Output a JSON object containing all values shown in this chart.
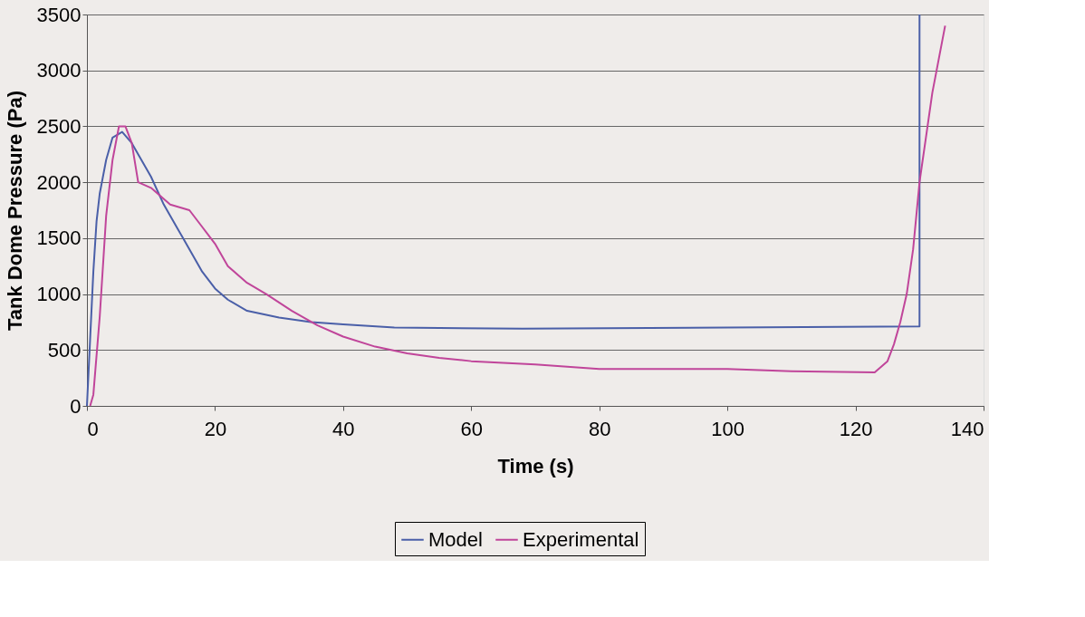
{
  "chart_data": {
    "type": "line",
    "xlabel": "Time (s)",
    "ylabel": "Tank Dome Pressure (Pa)",
    "xlim": [
      0,
      140
    ],
    "xticks": [
      0,
      20,
      40,
      60,
      80,
      100,
      120,
      140
    ],
    "ylim": [
      0,
      3500
    ],
    "yticks": [
      0,
      500,
      1000,
      1500,
      2000,
      2500,
      3000,
      3500
    ],
    "grid": "y",
    "legend": "bottom",
    "marker": "none",
    "line_style": "solid",
    "series": [
      {
        "name": "Model",
        "color": "#4a5fa8",
        "x": [
          0,
          0.5,
          1,
          1.5,
          2,
          3,
          4,
          5.5,
          7,
          10,
          12,
          15,
          18,
          20,
          22,
          25,
          30,
          35,
          40,
          48,
          68,
          100,
          130,
          130
        ],
        "values": [
          0,
          600,
          1200,
          1650,
          1900,
          2200,
          2400,
          2450,
          2350,
          2050,
          1800,
          1500,
          1200,
          1050,
          950,
          850,
          790,
          750,
          730,
          700,
          690,
          700,
          710,
          3500
        ]
      },
      {
        "name": "Experimental",
        "color": "#c0459a",
        "x": [
          0.5,
          1,
          2,
          3,
          4,
          5,
          6,
          7,
          8,
          10,
          13,
          16,
          18,
          20,
          22,
          25,
          28,
          32,
          36,
          40,
          45,
          50,
          55,
          60,
          70,
          80,
          100,
          110,
          123,
          125,
          126,
          127,
          128,
          129,
          130,
          131,
          132,
          133,
          134
        ],
        "values": [
          0,
          100,
          800,
          1700,
          2200,
          2500,
          2500,
          2350,
          2000,
          1950,
          1800,
          1750,
          1600,
          1450,
          1250,
          1100,
          1000,
          850,
          720,
          620,
          530,
          470,
          430,
          400,
          370,
          330,
          330,
          310,
          300,
          400,
          550,
          750,
          1000,
          1400,
          2000,
          2400,
          2800,
          3100,
          3400
        ]
      }
    ]
  }
}
